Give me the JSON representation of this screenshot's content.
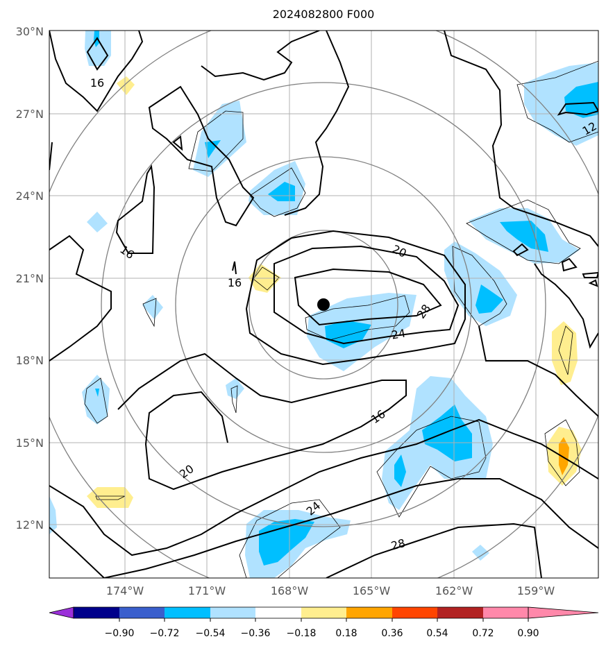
{
  "title": "2024082800 F000",
  "lat_labels": [
    "30°N",
    "27°N",
    "24°N",
    "21°N",
    "18°N",
    "15°N",
    "12°N"
  ],
  "lon_labels": [
    "174°W",
    "171°W",
    "168°W",
    "165°W",
    "162°W",
    "159°W"
  ],
  "contour_labels": [
    "16",
    "16",
    "16",
    "20",
    "28",
    "24",
    "16",
    "20",
    "24",
    "28",
    "12"
  ],
  "colorbar": {
    "ticks": [
      "−0.90",
      "−0.72",
      "−0.54",
      "−0.36",
      "−0.18",
      "0.18",
      "0.36",
      "0.54",
      "0.72",
      "0.90"
    ],
    "colors": [
      "#9b30d9",
      "#00008b",
      "#3a5fcd",
      "#00bfff",
      "#b0e2ff",
      "#ffffff",
      "#ffee8f",
      "#ffa500",
      "#ff4500",
      "#b22222",
      "#ff88aa"
    ]
  },
  "colors": {
    "light_blue": "#b0e2ff",
    "blue": "#00bfff",
    "light_yellow": "#ffee8f",
    "orange": "#ffa500",
    "range_ring": "#808080",
    "grid": "#b0b0b0",
    "contour": "#000000"
  }
}
